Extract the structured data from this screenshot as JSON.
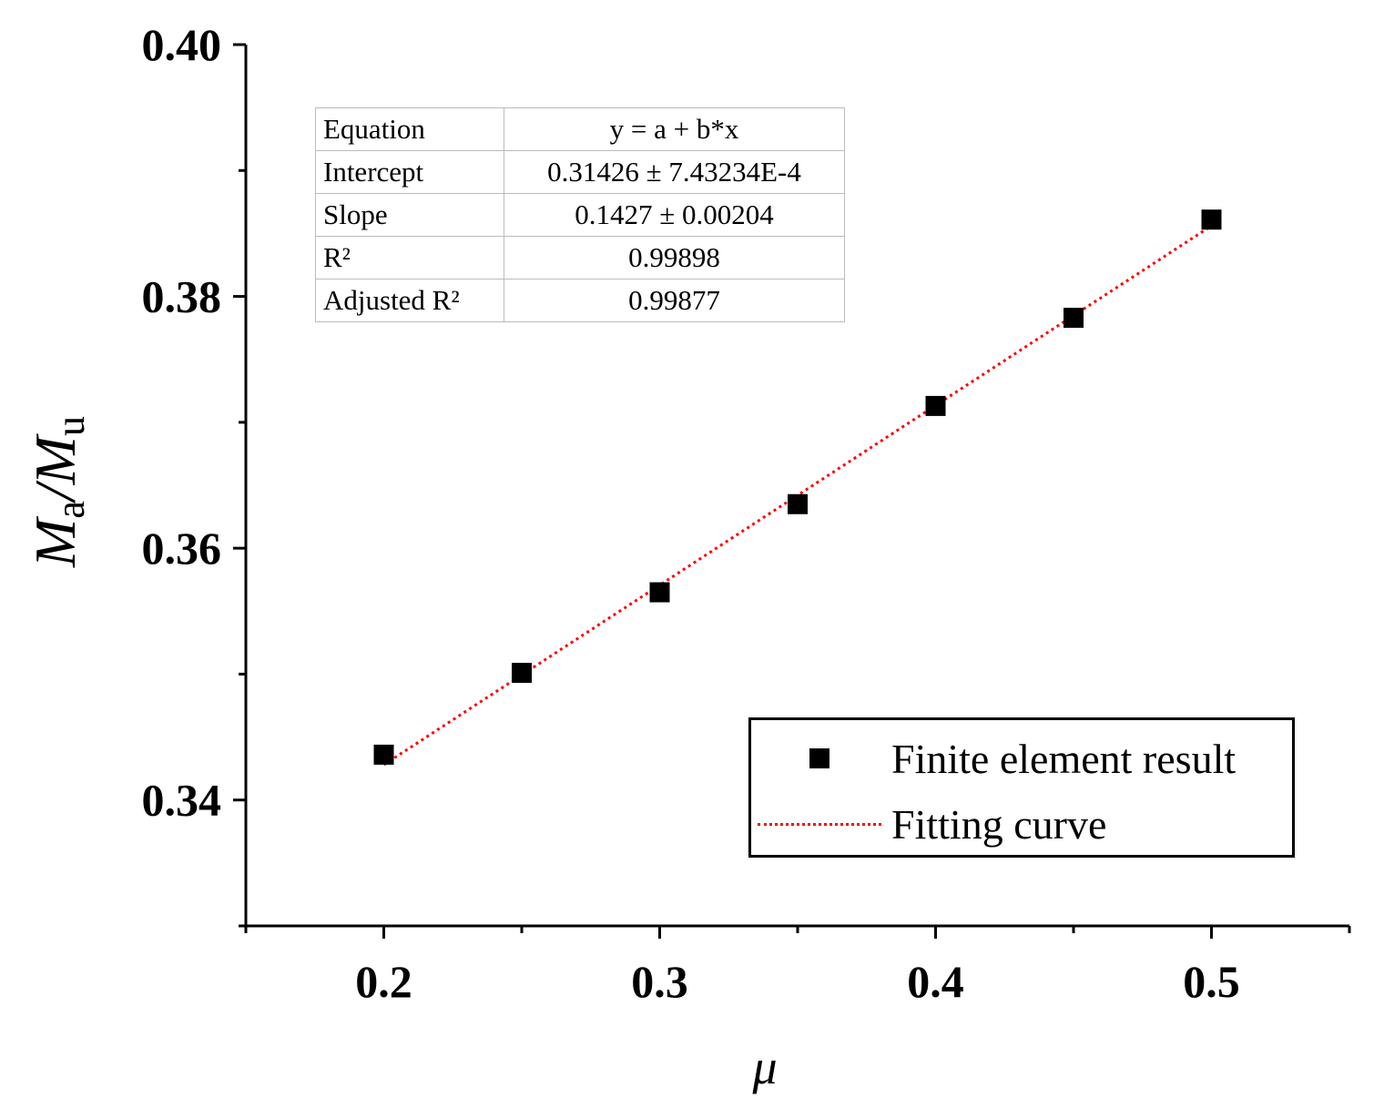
{
  "chart_data": {
    "type": "scatter",
    "title": "",
    "xlabel": "μ",
    "ylabel": "Ma/Mu",
    "ylabel_parts": {
      "main1": "M",
      "sub1": "a",
      "slash": "/",
      "main2": "M",
      "sub2": "u"
    },
    "xlim": [
      0.15,
      0.55
    ],
    "ylim": [
      0.33,
      0.4
    ],
    "x_ticks": [
      0.2,
      0.3,
      0.4,
      0.5
    ],
    "x_tick_labels": [
      "0.2",
      "0.3",
      "0.4",
      "0.5"
    ],
    "x_minor_ticks": [
      0.15,
      0.25,
      0.35,
      0.45,
      0.55
    ],
    "y_ticks": [
      0.34,
      0.36,
      0.38,
      0.4
    ],
    "y_tick_labels": [
      "0.34",
      "0.36",
      "0.38",
      "0.40"
    ],
    "y_minor_ticks": [
      0.33,
      0.35,
      0.37,
      0.39
    ],
    "series": [
      {
        "name": "Finite element result",
        "kind": "scatter",
        "marker": "square",
        "color": "#000000",
        "x": [
          0.2,
          0.25,
          0.3,
          0.35,
          0.4,
          0.45,
          0.5
        ],
        "y": [
          0.3436,
          0.3501,
          0.3565,
          0.3635,
          0.3713,
          0.3783,
          0.3861
        ]
      },
      {
        "name": "Fitting curve",
        "kind": "line",
        "style": "dotted",
        "color": "#ff0000",
        "intercept": 0.31426,
        "slope": 0.1427,
        "x_range": [
          0.2,
          0.5
        ]
      }
    ],
    "fit_table": [
      {
        "label": "Equation",
        "value": "y = a + b*x"
      },
      {
        "label": "Intercept",
        "value": "0.31426 ± 7.43234E-4"
      },
      {
        "label": "Slope",
        "value": "0.1427 ± 0.00204"
      },
      {
        "label": "R²",
        "value": "0.99898"
      },
      {
        "label": "Adjusted R²",
        "value": "0.99877"
      }
    ],
    "legend": [
      {
        "label": "Finite element result"
      },
      {
        "label": "Fitting curve"
      }
    ],
    "legend_position": "bottom-right",
    "grid": false
  }
}
